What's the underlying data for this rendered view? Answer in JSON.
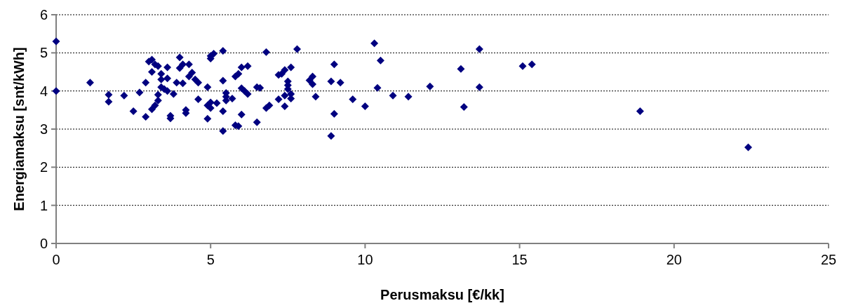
{
  "chart_data": {
    "type": "scatter",
    "xlabel": "Perusmaksu [€/kk]",
    "ylabel": "Energiamaksu [snt/kWh]",
    "xlim": [
      0,
      25
    ],
    "xticks": [
      0,
      5,
      10,
      15,
      20,
      25
    ],
    "ylim": [
      0,
      6
    ],
    "yticks": [
      0,
      1,
      2,
      3,
      4,
      5,
      6
    ],
    "grid": "y",
    "marker": "diamond",
    "series": [
      {
        "color": "#000080",
        "x": [
          0,
          0,
          1.1,
          1.7,
          1.7,
          2.2,
          2.5,
          2.7,
          2.9,
          2.9,
          3.0,
          3.1,
          3.1,
          3.1,
          3.2,
          3.2,
          3.3,
          3.3,
          3.3,
          3.4,
          3.4,
          3.4,
          3.5,
          3.6,
          3.6,
          3.6,
          3.7,
          3.7,
          3.8,
          3.9,
          4.0,
          4.0,
          4.1,
          4.1,
          4.2,
          4.2,
          4.3,
          4.3,
          4.4,
          4.5,
          4.6,
          4.6,
          4.9,
          4.9,
          4.9,
          5.0,
          5.0,
          5.0,
          5.0,
          5.1,
          5.2,
          5.4,
          5.4,
          5.4,
          5.4,
          5.5,
          5.5,
          5.5,
          5.7,
          5.8,
          5.8,
          5.9,
          5.9,
          6.0,
          6.0,
          6.0,
          6.1,
          6.2,
          6.2,
          6.5,
          6.5,
          6.6,
          6.8,
          6.8,
          6.9,
          7.2,
          7.2,
          7.3,
          7.4,
          7.4,
          7.4,
          7.5,
          7.5,
          7.5,
          7.6,
          7.6,
          7.6,
          7.8,
          8.2,
          8.3,
          8.3,
          8.4,
          8.9,
          8.9,
          9.0,
          9.0,
          9.2,
          9.6,
          10.0,
          10.3,
          10.4,
          10.5,
          10.9,
          11.4,
          12.1,
          13.1,
          13.2,
          13.7,
          13.7,
          15.1,
          15.4,
          18.9,
          22.4
        ],
        "values": [
          5.3,
          4.0,
          4.22,
          3.9,
          3.72,
          3.88,
          3.47,
          3.96,
          3.32,
          4.22,
          4.77,
          4.82,
          3.52,
          4.5,
          4.7,
          3.62,
          3.9,
          3.75,
          4.65,
          4.45,
          4.3,
          4.1,
          4.05,
          4.0,
          4.33,
          4.62,
          3.35,
          3.28,
          3.92,
          4.22,
          4.6,
          4.88,
          4.7,
          4.2,
          3.5,
          3.42,
          4.7,
          4.38,
          4.48,
          4.3,
          3.78,
          4.22,
          3.27,
          3.62,
          4.1,
          4.92,
          4.85,
          3.7,
          3.55,
          4.98,
          3.68,
          5.05,
          4.27,
          3.47,
          2.95,
          3.95,
          3.85,
          3.75,
          3.8,
          4.38,
          3.1,
          4.45,
          3.08,
          4.62,
          4.07,
          3.38,
          4.0,
          3.92,
          4.65,
          4.1,
          3.18,
          4.08,
          5.02,
          3.55,
          3.62,
          3.78,
          4.42,
          4.45,
          3.88,
          4.55,
          3.6,
          4.25,
          4.15,
          4.05,
          4.62,
          3.92,
          3.8,
          5.1,
          4.28,
          4.18,
          4.38,
          3.85,
          4.25,
          2.82,
          4.7,
          3.4,
          4.22,
          3.78,
          3.6,
          5.25,
          4.08,
          4.8,
          3.88,
          3.85,
          4.12,
          4.58,
          3.58,
          5.1,
          4.1,
          4.65,
          4.7,
          3.47,
          2.52
        ]
      }
    ]
  }
}
